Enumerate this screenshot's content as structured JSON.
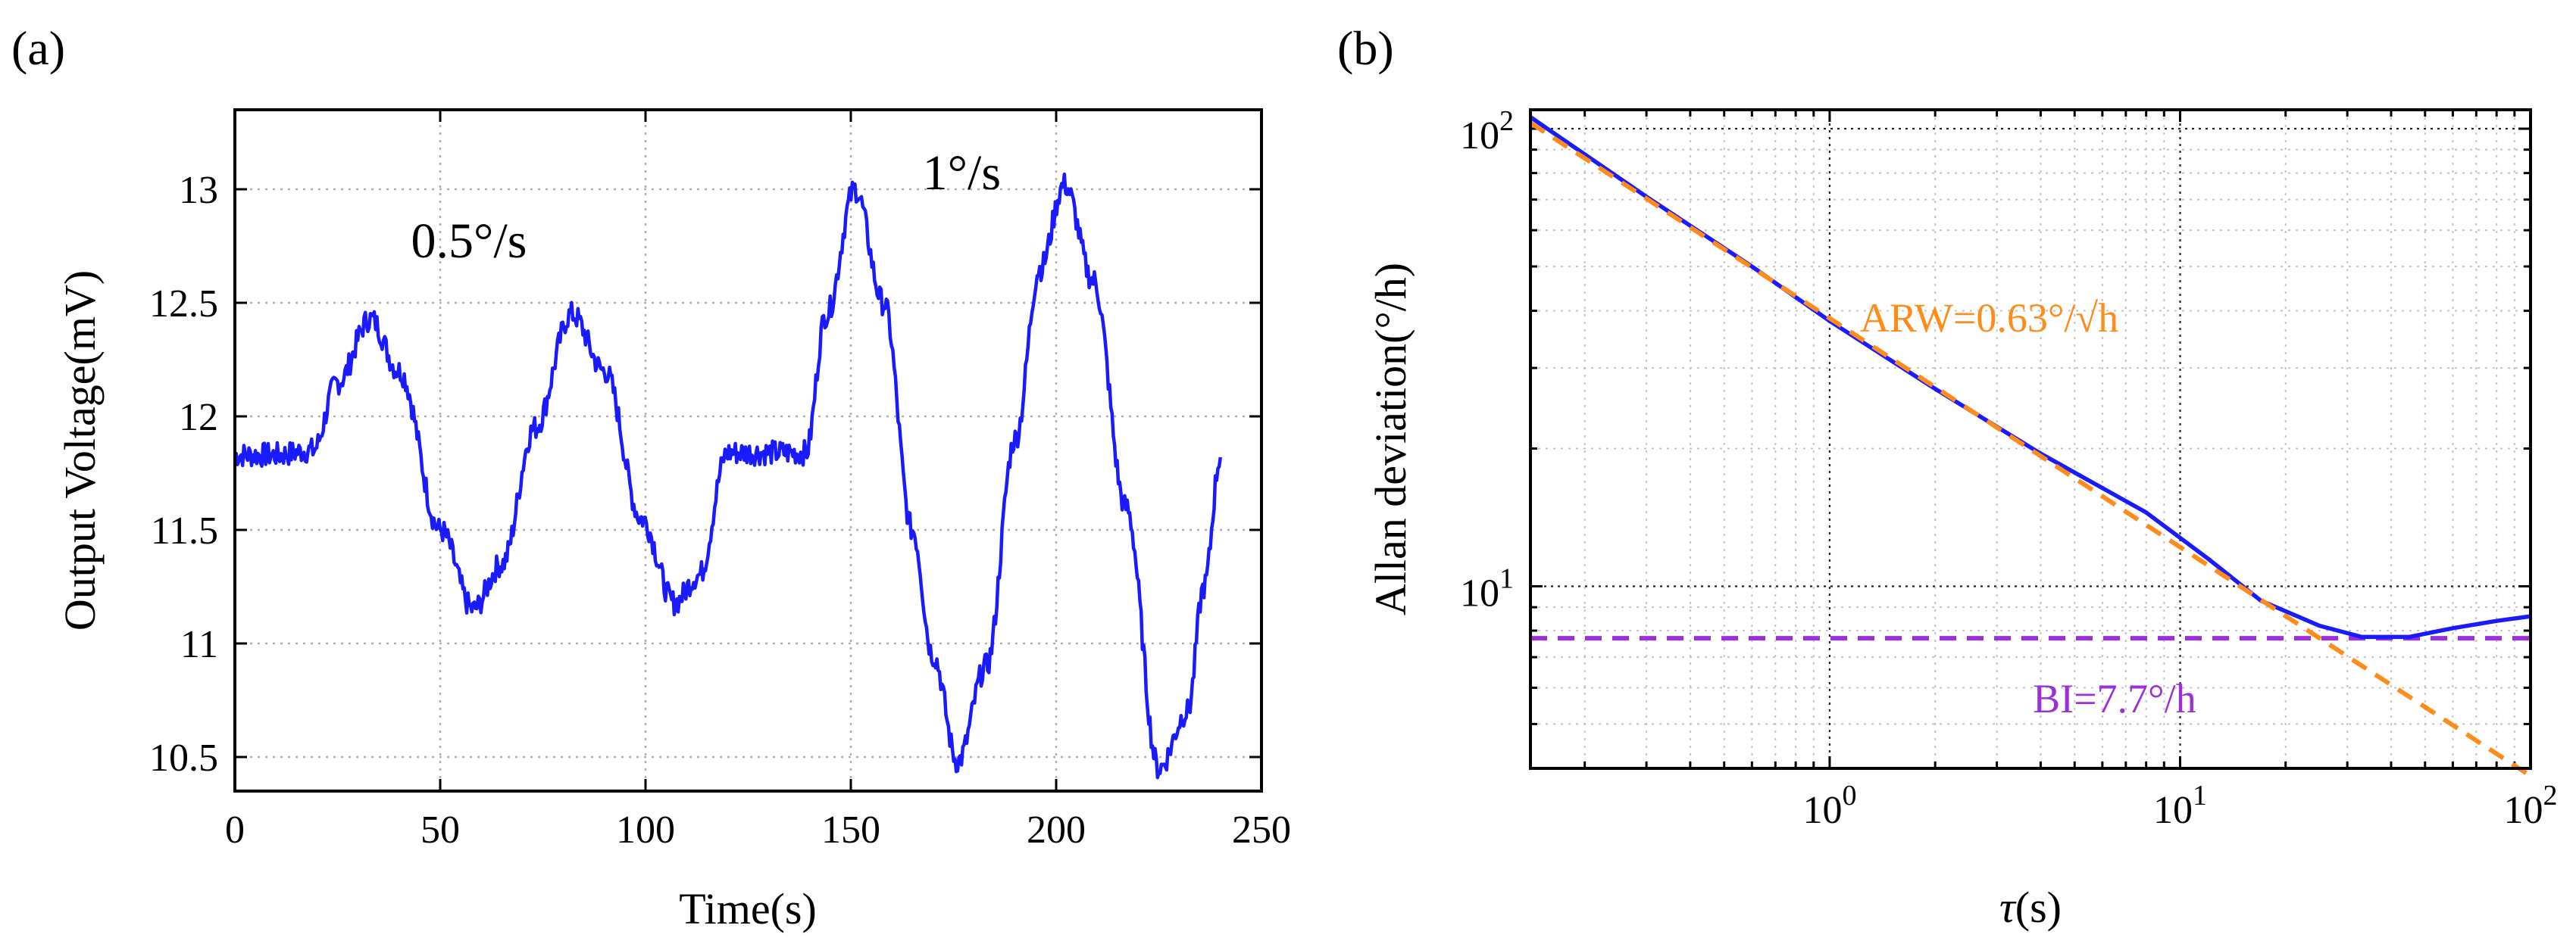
{
  "chart_data": [
    {
      "panel": "(a)",
      "type": "line",
      "title": "",
      "xlabel": "Time(s)",
      "ylabel": "Output Voltage(mV)",
      "xlim": [
        0,
        250
      ],
      "ylim": [
        10.35,
        13.35
      ],
      "xticks": [
        0,
        50,
        100,
        150,
        200,
        250
      ],
      "yticks": [
        10.5,
        11,
        11.5,
        12,
        12.5,
        13
      ],
      "xtick_labels": [
        "0",
        "50",
        "100",
        "150",
        "200",
        "250"
      ],
      "ytick_labels": [
        "10.5",
        "11",
        "11.5",
        "12",
        "12.5",
        "13"
      ],
      "grid": true,
      "series": [
        {
          "name": "Output Voltage",
          "color": "#1a1aff",
          "x": [
            0,
            10,
            19,
            25,
            33,
            40,
            50,
            58,
            65,
            73,
            82,
            90,
            99,
            107,
            113,
            120,
            130,
            139,
            144,
            151,
            158,
            165,
            170,
            176,
            183,
            190,
            196,
            202,
            209,
            217,
            225,
            232,
            236,
            240
          ],
          "y": [
            11.83,
            11.83,
            11.85,
            12.15,
            12.43,
            12.2,
            11.5,
            11.15,
            11.35,
            11.95,
            12.45,
            12.2,
            11.55,
            11.18,
            11.3,
            11.84,
            11.84,
            11.84,
            12.45,
            13.0,
            12.5,
            11.5,
            10.95,
            10.48,
            10.9,
            11.9,
            12.65,
            13.02,
            12.6,
            11.6,
            10.45,
            10.7,
            11.25,
            11.82
          ]
        }
      ],
      "annotations": [
        {
          "text": "0.5°/s",
          "x": 57,
          "y": 12.7
        },
        {
          "text": "1°/s",
          "x": 177,
          "y": 13.0
        }
      ]
    },
    {
      "panel": "(b)",
      "type": "line",
      "scale": "loglog",
      "title": "",
      "xlabel": "τ(s)",
      "ylabel": "Allan deviation(°/h)",
      "xlim": [
        0.14,
        100
      ],
      "ylim": [
        4,
        110
      ],
      "xticks": [
        1,
        10,
        100
      ],
      "yticks": [
        10,
        100
      ],
      "xtick_bases": [
        "10",
        "10",
        "10"
      ],
      "xtick_exps": [
        "0",
        "1",
        "2"
      ],
      "ytick_bases": [
        "10",
        "10"
      ],
      "ytick_exps": [
        "1",
        "2"
      ],
      "grid": true,
      "series": [
        {
          "name": "Allan deviation",
          "color": "#1a1aff",
          "style": "solid",
          "x": [
            0.14,
            0.3,
            0.6,
            1,
            2,
            4,
            8,
            12,
            17,
            25,
            33,
            45,
            60,
            80,
            100
          ],
          "y": [
            106,
            71,
            50,
            38,
            27,
            19.5,
            14.5,
            11.5,
            9.3,
            8.2,
            7.75,
            7.75,
            8.1,
            8.4,
            8.6
          ]
        },
        {
          "name": "ARW fit",
          "color": "#ff8c1a",
          "style": "dashed",
          "x": [
            0.14,
            100
          ],
          "y": [
            103,
            3.85
          ]
        },
        {
          "name": "BI level",
          "color": "#9b30d9",
          "style": "dashed",
          "x": [
            0.14,
            100
          ],
          "y": [
            7.7,
            7.7
          ]
        }
      ],
      "annotations": [
        {
          "text": "ARW=0.63°/√h",
          "color": "#ff8c1a",
          "x": 1.22,
          "y": 36
        },
        {
          "text": "BI=7.7°/h",
          "color": "#9b30d9",
          "x": 3.8,
          "y": 5.3
        }
      ]
    }
  ]
}
